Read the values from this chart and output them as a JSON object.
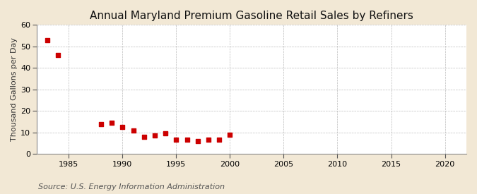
{
  "title": "Annual Maryland Premium Gasoline Retail Sales by Refiners",
  "ylabel": "Thousand Gallons per Day",
  "source": "Source: U.S. Energy Information Administration",
  "fig_background_color": "#f2e8d5",
  "plot_background_color": "#ffffff",
  "marker_color": "#cc0000",
  "years": [
    1983,
    1984,
    1988,
    1989,
    1990,
    1991,
    1992,
    1993,
    1994,
    1995,
    1996,
    1997,
    1998,
    1999,
    2000
  ],
  "values": [
    53,
    46,
    14,
    14.5,
    12.5,
    11,
    8,
    8.5,
    9.5,
    6.5,
    6.5,
    6,
    6.5,
    6.5,
    9
  ],
  "xlim": [
    1982,
    2022
  ],
  "ylim": [
    0,
    60
  ],
  "xticks": [
    1985,
    1990,
    1995,
    2000,
    2005,
    2010,
    2015,
    2020
  ],
  "yticks": [
    0,
    10,
    20,
    30,
    40,
    50,
    60
  ],
  "title_fontsize": 11,
  "label_fontsize": 8,
  "source_fontsize": 8,
  "tick_fontsize": 8
}
